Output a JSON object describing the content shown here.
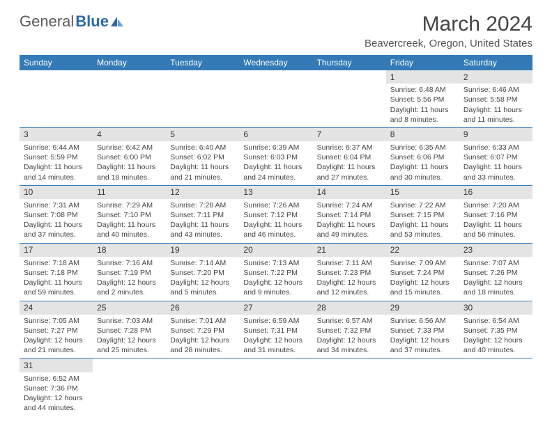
{
  "logo": {
    "text_gray": "General",
    "text_blue": "Blue"
  },
  "title": "March 2024",
  "location": "Beavercreek, Oregon, United States",
  "weekdays": [
    "Sunday",
    "Monday",
    "Tuesday",
    "Wednesday",
    "Thursday",
    "Friday",
    "Saturday"
  ],
  "colors": {
    "header_bg": "#337ab7",
    "header_text": "#ffffff",
    "daynum_bg": "#e4e4e4",
    "week_border": "#337ab7",
    "logo_gray": "#5a5a5a",
    "logo_blue": "#2e6aa8"
  },
  "weeks": [
    [
      {
        "n": "",
        "s": "",
        "t": "",
        "d": ""
      },
      {
        "n": "",
        "s": "",
        "t": "",
        "d": ""
      },
      {
        "n": "",
        "s": "",
        "t": "",
        "d": ""
      },
      {
        "n": "",
        "s": "",
        "t": "",
        "d": ""
      },
      {
        "n": "",
        "s": "",
        "t": "",
        "d": ""
      },
      {
        "n": "1",
        "s": "Sunrise: 6:48 AM",
        "t": "Sunset: 5:56 PM",
        "d": "Daylight: 11 hours and 8 minutes."
      },
      {
        "n": "2",
        "s": "Sunrise: 6:46 AM",
        "t": "Sunset: 5:58 PM",
        "d": "Daylight: 11 hours and 11 minutes."
      }
    ],
    [
      {
        "n": "3",
        "s": "Sunrise: 6:44 AM",
        "t": "Sunset: 5:59 PM",
        "d": "Daylight: 11 hours and 14 minutes."
      },
      {
        "n": "4",
        "s": "Sunrise: 6:42 AM",
        "t": "Sunset: 6:00 PM",
        "d": "Daylight: 11 hours and 18 minutes."
      },
      {
        "n": "5",
        "s": "Sunrise: 6:40 AM",
        "t": "Sunset: 6:02 PM",
        "d": "Daylight: 11 hours and 21 minutes."
      },
      {
        "n": "6",
        "s": "Sunrise: 6:39 AM",
        "t": "Sunset: 6:03 PM",
        "d": "Daylight: 11 hours and 24 minutes."
      },
      {
        "n": "7",
        "s": "Sunrise: 6:37 AM",
        "t": "Sunset: 6:04 PM",
        "d": "Daylight: 11 hours and 27 minutes."
      },
      {
        "n": "8",
        "s": "Sunrise: 6:35 AM",
        "t": "Sunset: 6:06 PM",
        "d": "Daylight: 11 hours and 30 minutes."
      },
      {
        "n": "9",
        "s": "Sunrise: 6:33 AM",
        "t": "Sunset: 6:07 PM",
        "d": "Daylight: 11 hours and 33 minutes."
      }
    ],
    [
      {
        "n": "10",
        "s": "Sunrise: 7:31 AM",
        "t": "Sunset: 7:08 PM",
        "d": "Daylight: 11 hours and 37 minutes."
      },
      {
        "n": "11",
        "s": "Sunrise: 7:29 AM",
        "t": "Sunset: 7:10 PM",
        "d": "Daylight: 11 hours and 40 minutes."
      },
      {
        "n": "12",
        "s": "Sunrise: 7:28 AM",
        "t": "Sunset: 7:11 PM",
        "d": "Daylight: 11 hours and 43 minutes."
      },
      {
        "n": "13",
        "s": "Sunrise: 7:26 AM",
        "t": "Sunset: 7:12 PM",
        "d": "Daylight: 11 hours and 46 minutes."
      },
      {
        "n": "14",
        "s": "Sunrise: 7:24 AM",
        "t": "Sunset: 7:14 PM",
        "d": "Daylight: 11 hours and 49 minutes."
      },
      {
        "n": "15",
        "s": "Sunrise: 7:22 AM",
        "t": "Sunset: 7:15 PM",
        "d": "Daylight: 11 hours and 53 minutes."
      },
      {
        "n": "16",
        "s": "Sunrise: 7:20 AM",
        "t": "Sunset: 7:16 PM",
        "d": "Daylight: 11 hours and 56 minutes."
      }
    ],
    [
      {
        "n": "17",
        "s": "Sunrise: 7:18 AM",
        "t": "Sunset: 7:18 PM",
        "d": "Daylight: 11 hours and 59 minutes."
      },
      {
        "n": "18",
        "s": "Sunrise: 7:16 AM",
        "t": "Sunset: 7:19 PM",
        "d": "Daylight: 12 hours and 2 minutes."
      },
      {
        "n": "19",
        "s": "Sunrise: 7:14 AM",
        "t": "Sunset: 7:20 PM",
        "d": "Daylight: 12 hours and 5 minutes."
      },
      {
        "n": "20",
        "s": "Sunrise: 7:13 AM",
        "t": "Sunset: 7:22 PM",
        "d": "Daylight: 12 hours and 9 minutes."
      },
      {
        "n": "21",
        "s": "Sunrise: 7:11 AM",
        "t": "Sunset: 7:23 PM",
        "d": "Daylight: 12 hours and 12 minutes."
      },
      {
        "n": "22",
        "s": "Sunrise: 7:09 AM",
        "t": "Sunset: 7:24 PM",
        "d": "Daylight: 12 hours and 15 minutes."
      },
      {
        "n": "23",
        "s": "Sunrise: 7:07 AM",
        "t": "Sunset: 7:26 PM",
        "d": "Daylight: 12 hours and 18 minutes."
      }
    ],
    [
      {
        "n": "24",
        "s": "Sunrise: 7:05 AM",
        "t": "Sunset: 7:27 PM",
        "d": "Daylight: 12 hours and 21 minutes."
      },
      {
        "n": "25",
        "s": "Sunrise: 7:03 AM",
        "t": "Sunset: 7:28 PM",
        "d": "Daylight: 12 hours and 25 minutes."
      },
      {
        "n": "26",
        "s": "Sunrise: 7:01 AM",
        "t": "Sunset: 7:29 PM",
        "d": "Daylight: 12 hours and 28 minutes."
      },
      {
        "n": "27",
        "s": "Sunrise: 6:59 AM",
        "t": "Sunset: 7:31 PM",
        "d": "Daylight: 12 hours and 31 minutes."
      },
      {
        "n": "28",
        "s": "Sunrise: 6:57 AM",
        "t": "Sunset: 7:32 PM",
        "d": "Daylight: 12 hours and 34 minutes."
      },
      {
        "n": "29",
        "s": "Sunrise: 6:56 AM",
        "t": "Sunset: 7:33 PM",
        "d": "Daylight: 12 hours and 37 minutes."
      },
      {
        "n": "30",
        "s": "Sunrise: 6:54 AM",
        "t": "Sunset: 7:35 PM",
        "d": "Daylight: 12 hours and 40 minutes."
      }
    ],
    [
      {
        "n": "31",
        "s": "Sunrise: 6:52 AM",
        "t": "Sunset: 7:36 PM",
        "d": "Daylight: 12 hours and 44 minutes."
      },
      {
        "n": "",
        "s": "",
        "t": "",
        "d": ""
      },
      {
        "n": "",
        "s": "",
        "t": "",
        "d": ""
      },
      {
        "n": "",
        "s": "",
        "t": "",
        "d": ""
      },
      {
        "n": "",
        "s": "",
        "t": "",
        "d": ""
      },
      {
        "n": "",
        "s": "",
        "t": "",
        "d": ""
      },
      {
        "n": "",
        "s": "",
        "t": "",
        "d": ""
      }
    ]
  ]
}
